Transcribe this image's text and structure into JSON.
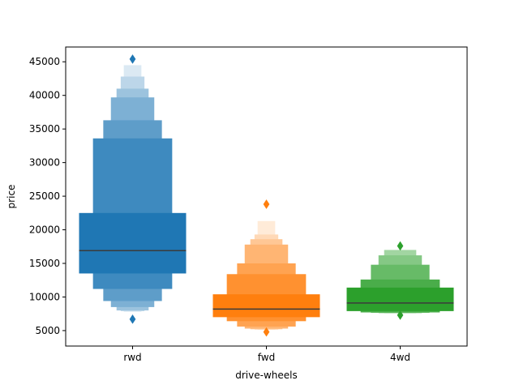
{
  "chart_data": {
    "type": "boxen",
    "title": "",
    "xlabel": "drive-wheels",
    "ylabel": "price",
    "ylim": [
      2700,
      47200
    ],
    "y_ticks": [
      5000,
      10000,
      15000,
      20000,
      25000,
      30000,
      35000,
      40000,
      45000
    ],
    "y_tick_labels": [
      "5000",
      "10000",
      "15000",
      "20000",
      "25000",
      "30000",
      "35000",
      "40000",
      "45000"
    ],
    "categories": [
      "rwd",
      "fwd",
      "4wd"
    ],
    "grid": false,
    "legend": "none",
    "groups": [
      {
        "category": "rwd",
        "color": "#1f77b4",
        "median": 16900,
        "boxes": [
          {
            "low": 13500,
            "high": 22500
          },
          {
            "low": 11200,
            "high": 33600
          },
          {
            "low": 9400,
            "high": 36300
          },
          {
            "low": 8500,
            "high": 39700
          },
          {
            "low": 8000,
            "high": 41000
          },
          {
            "low": 7900,
            "high": 42800
          },
          {
            "low": 7800,
            "high": 44500
          }
        ],
        "outliers": [
          45400,
          6700
        ]
      },
      {
        "category": "fwd",
        "color": "#ff7f0e",
        "median": 8200,
        "boxes": [
          {
            "low": 7000,
            "high": 10400
          },
          {
            "low": 6400,
            "high": 13400
          },
          {
            "low": 5600,
            "high": 15000
          },
          {
            "low": 5300,
            "high": 17800
          },
          {
            "low": 5200,
            "high": 18600
          },
          {
            "low": 5150,
            "high": 19300
          },
          {
            "low": 5100,
            "high": 21300
          }
        ],
        "outliers": [
          23800,
          4800
        ]
      },
      {
        "category": "4wd",
        "color": "#2ca02c",
        "median": 9100,
        "boxes": [
          {
            "low": 7900,
            "high": 11400
          },
          {
            "low": 7700,
            "high": 12600
          },
          {
            "low": 7650,
            "high": 14800
          },
          {
            "low": 7600,
            "high": 16200
          },
          {
            "low": 7580,
            "high": 17000
          }
        ],
        "outliers": [
          17600,
          7300
        ]
      }
    ]
  }
}
